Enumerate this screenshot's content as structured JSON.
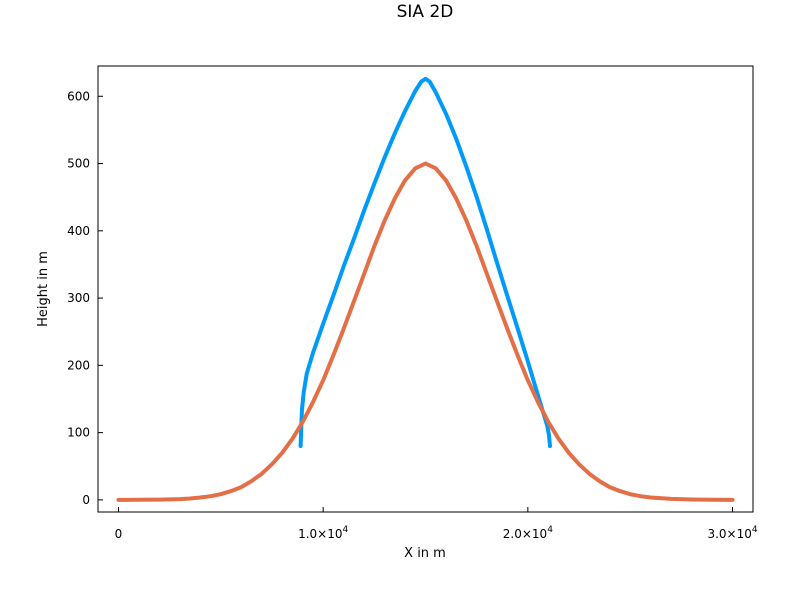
{
  "chart_data": {
    "type": "line",
    "title": "SIA 2D",
    "xlabel": "X in m",
    "ylabel": "Height in m",
    "xlim": [
      -1000,
      31000
    ],
    "ylim": [
      -18,
      645
    ],
    "x_ticks": [
      {
        "value": 0,
        "base": "0",
        "exp": ""
      },
      {
        "value": 10000,
        "base": "1.0×10",
        "exp": "4"
      },
      {
        "value": 20000,
        "base": "2.0×10",
        "exp": "4"
      },
      {
        "value": 30000,
        "base": "3.0×10",
        "exp": "4"
      }
    ],
    "y_ticks": [
      0,
      100,
      200,
      300,
      400,
      500,
      600
    ],
    "grid": false,
    "legend": "none",
    "series": [
      {
        "color": "#009AF9",
        "x": [
          8900,
          8920,
          8960,
          9050,
          9200,
          9500,
          10000,
          10500,
          11000,
          11500,
          12000,
          12500,
          13000,
          13500,
          14000,
          14500,
          14800,
          15000,
          15200,
          15500,
          16000,
          16500,
          17000,
          17500,
          18000,
          18500,
          19000,
          19500,
          20000,
          20300,
          20600,
          20800,
          20950,
          21030,
          21060,
          21080
        ],
        "y": [
          80,
          100,
          133,
          160,
          188,
          218,
          262,
          304,
          347,
          388,
          430,
          470,
          509,
          545,
          578,
          608,
          622,
          626,
          622,
          606,
          574,
          537,
          495,
          450,
          402,
          352,
          303,
          255,
          206,
          175,
          145,
          125,
          110,
          97,
          88,
          80
        ]
      },
      {
        "color": "#E26F46",
        "x": [
          0,
          1000,
          2000,
          3000,
          3500,
          4000,
          4500,
          5000,
          5500,
          6000,
          6500,
          7000,
          7500,
          8000,
          8500,
          9000,
          9500,
          10000,
          10500,
          11000,
          11500,
          12000,
          12500,
          13000,
          13500,
          14000,
          14500,
          15000,
          15500,
          16000,
          16500,
          17000,
          17500,
          18000,
          18500,
          19000,
          19500,
          20000,
          20500,
          21000,
          21500,
          22000,
          22500,
          23000,
          23500,
          24000,
          24500,
          25000,
          25500,
          26000,
          27000,
          28000,
          29000,
          30000
        ],
        "y": [
          0,
          0.2,
          0.5,
          1.2,
          2,
          3.5,
          5.5,
          8.5,
          13,
          19,
          28,
          39,
          53,
          70,
          91,
          116,
          145,
          178,
          215,
          254,
          295,
          336,
          377,
          415,
          448,
          475,
          493,
          500,
          493,
          475,
          448,
          415,
          377,
          336,
          295,
          254,
          215,
          178,
          145,
          116,
          91,
          70,
          53,
          39,
          28,
          19,
          13,
          8.5,
          5.5,
          3.5,
          1.5,
          0.6,
          0.2,
          0
        ]
      }
    ]
  }
}
